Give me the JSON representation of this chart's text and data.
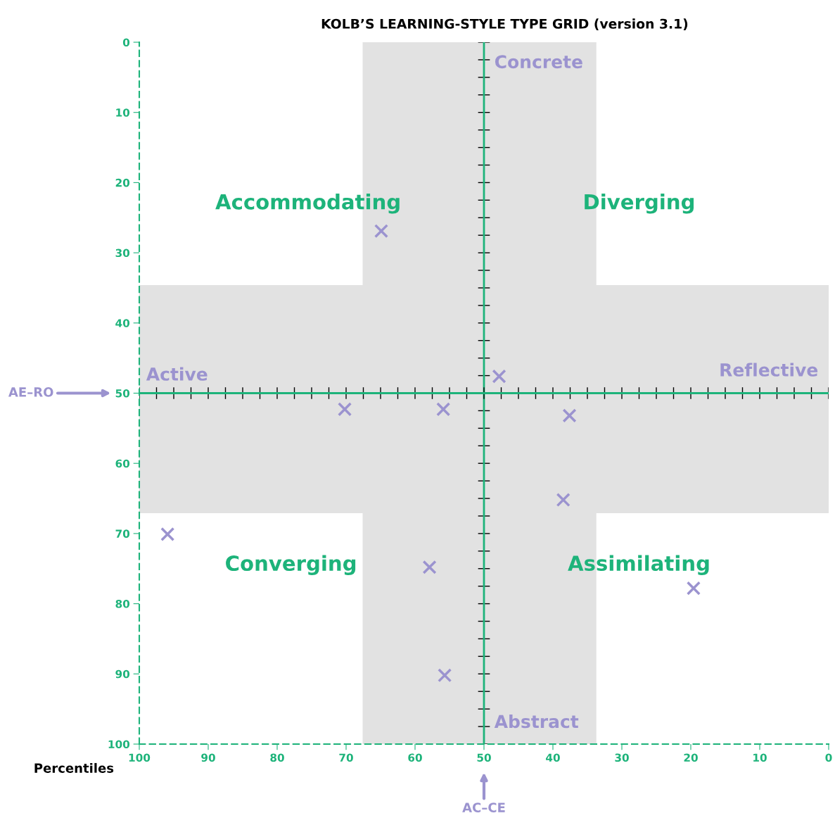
{
  "chart_data": {
    "type": "scatter",
    "title": "KOLB’S LEARNING-STYLE TYPE GRID (version 3.1)",
    "xlabel": "Percentiles",
    "x": [
      64.9,
      47.8,
      70.2,
      55.9,
      37.6,
      38.5,
      95.9,
      57.9,
      19.6,
      55.7
    ],
    "series": [
      {
        "color": "#9b93cf",
        "values": [
          26.9,
          47.6,
          52.3,
          52.3,
          53.2,
          65.2,
          70.1,
          74.8,
          77.8,
          90.2
        ]
      }
    ],
    "marker": "cross",
    "grid": false,
    "legend": false,
    "xlim": [
      100,
      0
    ],
    "ylim": [
      100,
      0
    ],
    "xticks": [
      100,
      90,
      80,
      70,
      60,
      50,
      40,
      30,
      20,
      10,
      0
    ],
    "yticks": [
      0,
      10,
      20,
      30,
      40,
      50,
      60,
      70,
      80,
      90,
      100
    ],
    "bands": [
      {
        "axis": "x",
        "from": 67.6,
        "to": 33.7,
        "color": "#e2e2e2"
      },
      {
        "axis": "y",
        "from": 34.6,
        "to": 67.1,
        "color": "#e2e2e2"
      }
    ],
    "ref_lines": [
      {
        "axis": "x",
        "value": 50,
        "color": "#1db37a"
      },
      {
        "axis": "y",
        "value": 50,
        "color": "#1db37a"
      }
    ],
    "annotations": [
      "Accommodating",
      "Diverging",
      "Converging",
      "Assimilating",
      "Concrete",
      "Abstract",
      "Active",
      "Reflective",
      "AE–RO",
      "AC–CE"
    ]
  }
}
